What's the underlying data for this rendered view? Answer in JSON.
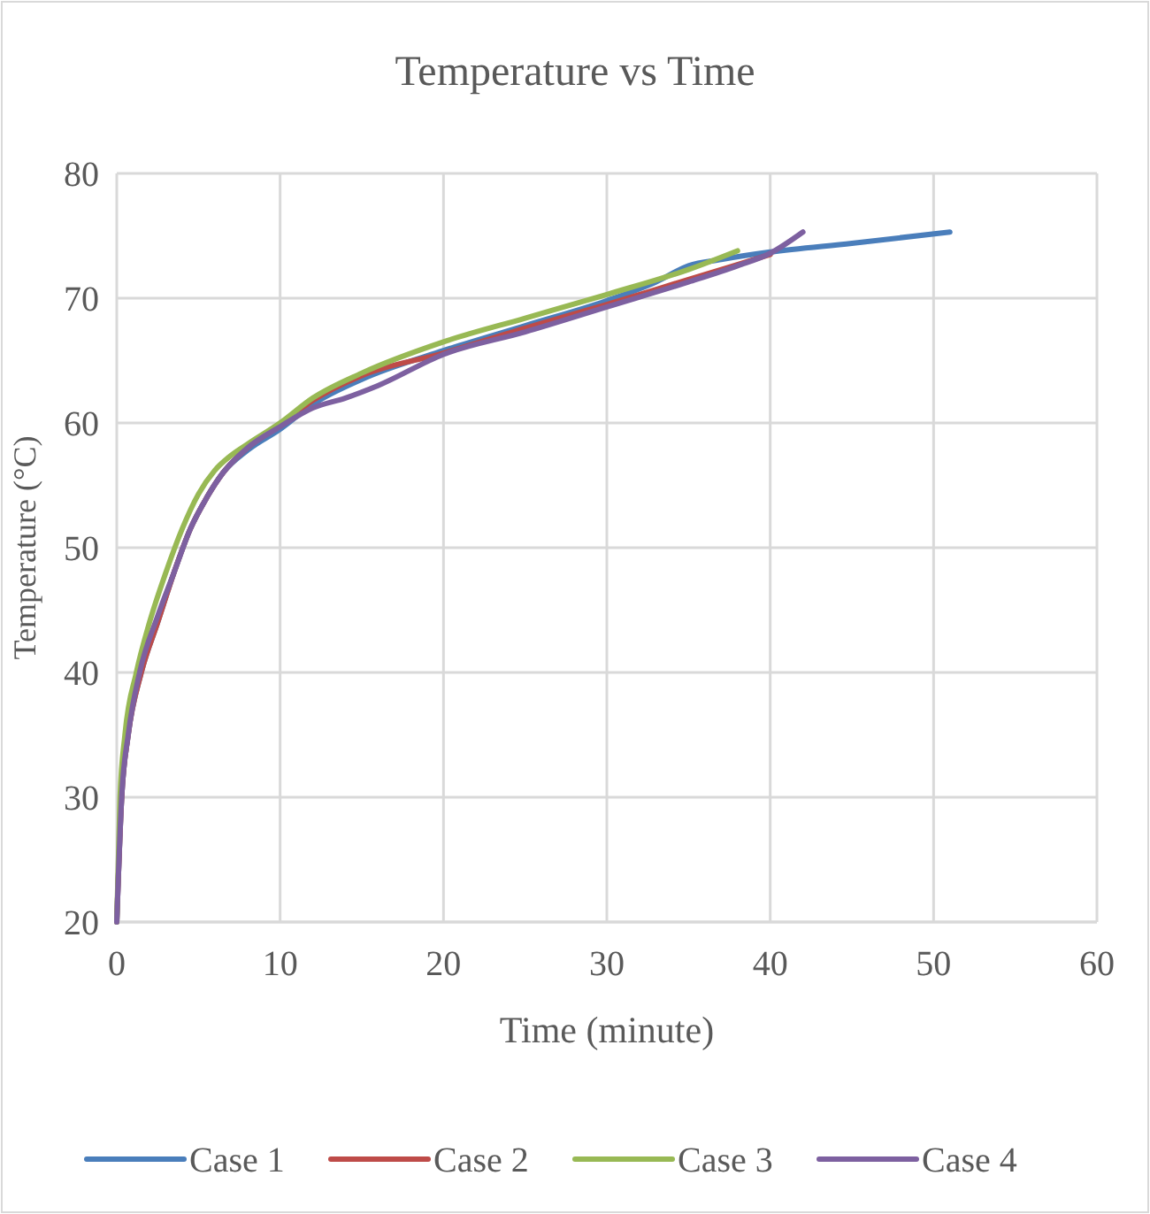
{
  "chart_data": {
    "type": "line",
    "title": "Temperature vs Time",
    "xlabel": "Time (minute)",
    "ylabel": "Temperature (°C)",
    "xlim": [
      0,
      60
    ],
    "xticks": [
      0,
      10,
      20,
      30,
      40,
      50,
      60
    ],
    "ylim": [
      20,
      80
    ],
    "yticks": [
      20,
      30,
      40,
      50,
      60,
      70,
      80
    ],
    "grid": true,
    "legend": "bottom",
    "marker": "none",
    "line_style": "solid",
    "series": [
      {
        "name": "Case 1",
        "color": "#4a7ebb",
        "x": [
          0,
          0.3,
          0.7,
          1.5,
          2.5,
          3.5,
          4.5,
          5.5,
          6.5,
          8,
          10,
          12,
          15,
          20,
          25,
          30,
          33,
          35,
          37,
          40,
          45,
          51
        ],
        "values": [
          20,
          30,
          35,
          40,
          44,
          48,
          51.5,
          54,
          56,
          57.8,
          59.5,
          61.5,
          63.5,
          65.8,
          67.8,
          69.8,
          71.3,
          72.6,
          73.1,
          73.7,
          74.4,
          75.3
        ]
      },
      {
        "name": "Case 2",
        "color": "#be4b48",
        "x": [
          0,
          0.3,
          0.7,
          1.5,
          2.5,
          3.5,
          4.5,
          5.5,
          6.5,
          8,
          10,
          12,
          15,
          20,
          25,
          30,
          35,
          40
        ],
        "values": [
          20,
          30,
          35,
          40,
          44,
          48,
          51.5,
          54,
          56,
          58,
          59.8,
          61.8,
          63.8,
          65.6,
          67.6,
          69.5,
          71.5,
          73.5
        ]
      },
      {
        "name": "Case 3",
        "color": "#98b954",
        "x": [
          0,
          0.2,
          0.5,
          1.2,
          2,
          3,
          4,
          5,
          6,
          7,
          8,
          10,
          12,
          15,
          20,
          25,
          30,
          35,
          38
        ],
        "values": [
          20,
          30,
          35,
          40,
          44,
          48,
          51.5,
          54.3,
          56.2,
          57.4,
          58.3,
          60,
          62,
          64,
          66.5,
          68.4,
          70.3,
          72.3,
          73.8
        ]
      },
      {
        "name": "Case 4",
        "color": "#7d60a0",
        "x": [
          0,
          0.3,
          0.7,
          1.4,
          2.5,
          3.5,
          4.5,
          5.5,
          6.5,
          8,
          10,
          12,
          14,
          16,
          20,
          25,
          30,
          35,
          38,
          40,
          42
        ],
        "values": [
          20,
          30,
          35,
          40,
          44.5,
          48,
          51.5,
          54,
          56,
          58,
          59.7,
          61.2,
          62,
          63,
          65.5,
          67.3,
          69.3,
          71.3,
          72.6,
          73.6,
          75.3
        ]
      }
    ]
  }
}
